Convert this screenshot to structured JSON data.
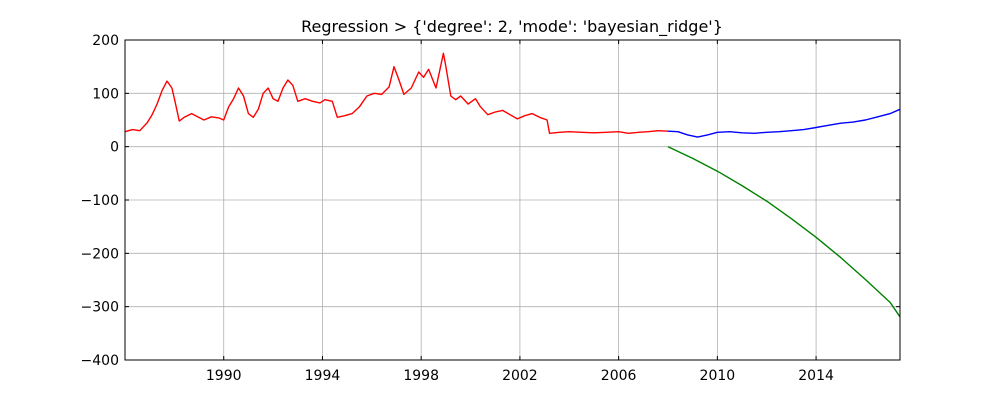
{
  "chart_data": {
    "type": "line",
    "title": "Regression > {'degree': 2, 'mode': 'bayesian_ridge'}",
    "xlabel": "",
    "ylabel": "",
    "xlim": [
      1986.0,
      2017.4
    ],
    "ylim": [
      -400,
      200
    ],
    "x_ticks": [
      1990,
      1994,
      1998,
      2002,
      2006,
      2010,
      2014
    ],
    "x_tick_labels": [
      "1990",
      "1994",
      "1998",
      "2002",
      "2006",
      "2010",
      "2014"
    ],
    "y_ticks": [
      200,
      100,
      0,
      -100,
      -200,
      -300,
      -400
    ],
    "y_tick_labels": [
      "200",
      "100",
      "0",
      "−100",
      "−200",
      "−300",
      "−400"
    ],
    "grid": true,
    "series": [
      {
        "color": "#ff0000",
        "x": [
          1986.0,
          1986.3,
          1986.6,
          1986.9,
          1987.1,
          1987.3,
          1987.5,
          1987.7,
          1987.9,
          1988.0,
          1988.2,
          1988.4,
          1988.7,
          1988.9,
          1989.2,
          1989.5,
          1989.8,
          1990.0,
          1990.2,
          1990.4,
          1990.6,
          1990.8,
          1991.0,
          1991.2,
          1991.4,
          1991.6,
          1991.8,
          1992.0,
          1992.2,
          1992.4,
          1992.6,
          1992.8,
          1993.0,
          1993.3,
          1993.6,
          1993.9,
          1994.1,
          1994.4,
          1994.6,
          1994.9,
          1995.2,
          1995.5,
          1995.8,
          1996.1,
          1996.4,
          1996.7,
          1996.9,
          1997.1,
          1997.3,
          1997.6,
          1997.9,
          1998.1,
          1998.3,
          1998.6,
          1998.9,
          1999.0,
          1999.2,
          1999.4,
          1999.6,
          1999.9,
          2000.2,
          2000.4,
          2000.7,
          2001.0,
          2001.3,
          2001.6,
          2001.9,
          2002.2,
          2002.5,
          2002.8,
          2003.1,
          2003.2,
          2003.6,
          2004.0,
          2004.5,
          2005.0,
          2005.5,
          2006.0,
          2006.4,
          2006.8,
          2007.2,
          2007.6,
          2008.0
        ],
        "y": [
          28,
          32,
          30,
          45,
          60,
          80,
          105,
          123,
          110,
          90,
          48,
          55,
          62,
          57,
          50,
          56,
          54,
          50,
          75,
          90,
          110,
          95,
          62,
          55,
          70,
          100,
          110,
          90,
          85,
          110,
          125,
          115,
          85,
          90,
          85,
          82,
          88,
          85,
          55,
          58,
          62,
          75,
          95,
          100,
          98,
          112,
          150,
          125,
          98,
          110,
          140,
          130,
          145,
          110,
          175,
          150,
          95,
          88,
          95,
          80,
          90,
          75,
          60,
          65,
          68,
          60,
          52,
          58,
          62,
          55,
          50,
          25,
          27,
          28,
          27,
          26,
          27,
          28,
          25,
          27,
          28,
          30,
          29
        ]
      },
      {
        "color": "#0000ff",
        "x": [
          2008.0,
          2008.4,
          2008.8,
          2009.2,
          2009.6,
          2010.0,
          2010.5,
          2011.0,
          2011.5,
          2012.0,
          2012.5,
          2013.0,
          2013.5,
          2014.0,
          2014.5,
          2015.0,
          2015.5,
          2016.0,
          2016.5,
          2017.0,
          2017.4
        ],
        "y": [
          29,
          28,
          22,
          18,
          22,
          27,
          28,
          26,
          25,
          27,
          28,
          30,
          32,
          36,
          40,
          44,
          46,
          50,
          56,
          62,
          70
        ]
      },
      {
        "color": "#008000",
        "x": [
          2008.0,
          2009.0,
          2010.0,
          2011.0,
          2012.0,
          2013.0,
          2014.0,
          2015.0,
          2016.0,
          2017.0,
          2017.4
        ],
        "y": [
          0,
          -22,
          -46,
          -73,
          -102,
          -135,
          -170,
          -208,
          -249,
          -292,
          -319
        ]
      }
    ]
  }
}
